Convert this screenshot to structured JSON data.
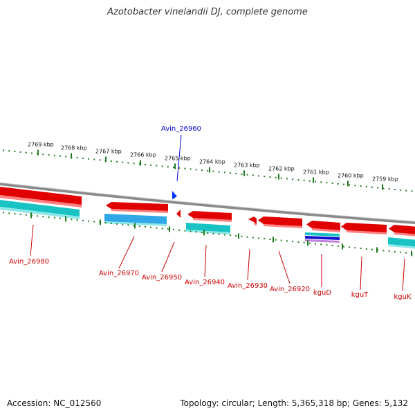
{
  "title": "Azotobacter vinelandii DJ, complete genome",
  "footer": {
    "accession_label": "Accession:",
    "accession": "NC_012560",
    "topology_line": "Topology: circular; Length: 5,365,318 bp; Genes: 5,132"
  },
  "colors": {
    "backbone": "#8a8a8a",
    "tick": "#1e7a1e",
    "gene_label": "#cc0000",
    "highlight_label": "#0000cc",
    "cds": "#e00000",
    "rna_cyan": "#19c3c3",
    "rna_blue": "#30a8e8"
  },
  "scale_labels": [
    "2769 kbp",
    "2768 kbp",
    "2767 kbp",
    "2766 kbp",
    "2765 kbp",
    "2764 kbp",
    "2763 kbp",
    "2762 kbp",
    "2761 kbp",
    "2760 kbp",
    "2759 kbp"
  ],
  "genes": [
    {
      "label": "Avin_26980"
    },
    {
      "label": "Avin_26970"
    },
    {
      "label": "Avin_26950"
    },
    {
      "label": "Avin_26940"
    },
    {
      "label": "Avin_26930"
    },
    {
      "label": "Avin_26920"
    },
    {
      "label": "kguD"
    },
    {
      "label": "kguT"
    },
    {
      "label": "kguK"
    }
  ],
  "highlight": {
    "label": "Avin_26960"
  }
}
